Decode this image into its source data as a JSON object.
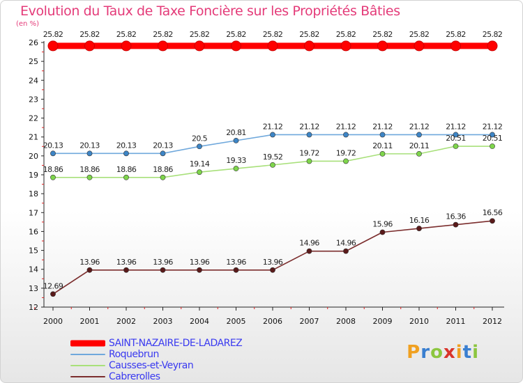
{
  "chart_data": {
    "type": "line",
    "title": "Evolution du Taux de Taxe Foncière sur les Propriétés Bâties",
    "ylabel": "(en %)",
    "xlabel": "",
    "categories": [
      "2000",
      "2001",
      "2002",
      "2003",
      "2004",
      "2005",
      "2006",
      "2007",
      "2008",
      "2009",
      "2010",
      "2011",
      "2012"
    ],
    "ylim": [
      12,
      26
    ],
    "yticks": [
      12,
      13,
      14,
      15,
      16,
      17,
      18,
      19,
      20,
      21,
      22,
      23,
      24,
      25,
      26
    ],
    "grid": false,
    "series": [
      {
        "name": "SAINT-NAZAIRE-DE-LADAREZ",
        "color": "#ff0000",
        "values": [
          25.82,
          25.82,
          25.82,
          25.82,
          25.82,
          25.82,
          25.82,
          25.82,
          25.82,
          25.82,
          25.82,
          25.82,
          25.82
        ]
      },
      {
        "name": "Roquebrun",
        "color": "#6fa8dc",
        "marker": "#3d85c6",
        "values": [
          20.13,
          20.13,
          20.13,
          20.13,
          20.5,
          20.81,
          21.12,
          21.12,
          21.12,
          21.12,
          21.12,
          21.12,
          21.12
        ]
      },
      {
        "name": "Causses-et-Veyran",
        "color": "#a8e07a",
        "marker": "#7ed54b",
        "values": [
          18.86,
          18.86,
          18.86,
          18.86,
          19.14,
          19.33,
          19.52,
          19.72,
          19.72,
          20.11,
          20.11,
          20.51,
          20.51
        ]
      },
      {
        "name": "Cabrerolles",
        "color": "#7b2d2d",
        "marker": "#5a1a1a",
        "values": [
          12.69,
          13.96,
          13.96,
          13.96,
          13.96,
          13.96,
          13.96,
          14.96,
          14.96,
          15.96,
          16.16,
          16.36,
          16.56
        ]
      }
    ],
    "value_labels": [
      [
        "25.82",
        "25.82",
        "25.82",
        "25.82",
        "25.82",
        "25.82",
        "25.82",
        "25.82",
        "25.82",
        "25.82",
        "25.82",
        "25.82",
        "25.82"
      ],
      [
        "20.13",
        "20.13",
        "20.13",
        "20.13",
        "20.5",
        "20.81",
        "21.12",
        "21.12",
        "21.12",
        "21.12",
        "21.12",
        "21.12",
        "21.12"
      ],
      [
        "18.86",
        "18.86",
        "18.86",
        "18.86",
        "19.14",
        "19.33",
        "19.52",
        "19.72",
        "19.72",
        "20.11",
        "20.11",
        "20.51",
        "20.51"
      ],
      [
        "12.69",
        "13.96",
        "13.96",
        "13.96",
        "13.96",
        "13.96",
        "13.96",
        "14.96",
        "14.96",
        "15.96",
        "16.16",
        "16.36",
        "16.56"
      ]
    ]
  },
  "legend": {
    "items": [
      {
        "label": "SAINT-NAZAIRE-DE-LADAREZ",
        "color": "#ff0000"
      },
      {
        "label": "Roquebrun",
        "color": "#6fa8dc"
      },
      {
        "label": "Causses-et-Veyran",
        "color": "#a8e07a"
      },
      {
        "label": "Cabrerolles",
        "color": "#7b2d2d"
      }
    ]
  },
  "brand": {
    "letters": [
      "P",
      "r",
      "o",
      "x",
      "i",
      "t",
      "i"
    ],
    "colors": [
      "#f0a020",
      "#3a7fd0",
      "#8cc63f",
      "#d9342b",
      "#f0a020",
      "#3a7fd0",
      "#8cc63f"
    ]
  }
}
